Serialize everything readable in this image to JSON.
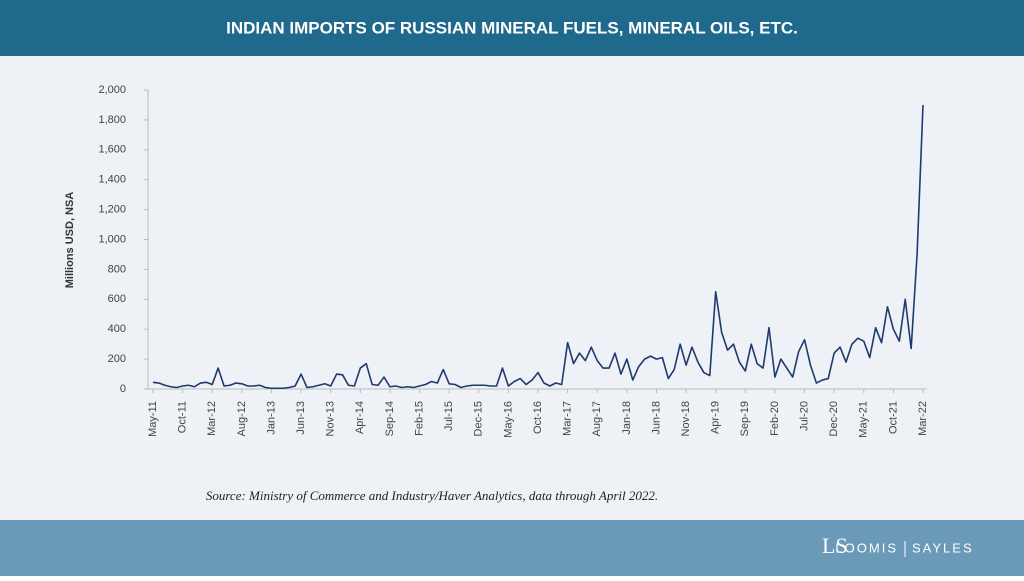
{
  "chart_data": {
    "type": "line",
    "title": "INDIAN IMPORTS OF RUSSIAN MINERAL FUELS, MINERAL OILS, ETC.",
    "y_label": "Millions USD, NSA",
    "source": "Source: Ministry of Commerce and Industry/Haver Analytics, data through April 2022.",
    "categories": [
      "May-11",
      null,
      null,
      null,
      null,
      "Oct-11",
      null,
      null,
      null,
      null,
      "Mar-12",
      null,
      null,
      null,
      null,
      "Aug-12",
      null,
      null,
      null,
      null,
      "Jan-13",
      null,
      null,
      null,
      null,
      "Jun-13",
      null,
      null,
      null,
      null,
      "Nov-13",
      null,
      null,
      null,
      null,
      "Apr-14",
      null,
      null,
      null,
      null,
      "Sep-14",
      null,
      null,
      null,
      null,
      "Feb-15",
      null,
      null,
      null,
      null,
      "Jul-15",
      null,
      null,
      null,
      null,
      "Dec-15",
      null,
      null,
      null,
      null,
      "May-16",
      null,
      null,
      null,
      null,
      "Oct-16",
      null,
      null,
      null,
      null,
      "Mar-17",
      null,
      null,
      null,
      null,
      "Aug-17",
      null,
      null,
      null,
      null,
      "Jan-18",
      null,
      null,
      null,
      null,
      "Jun-18",
      null,
      null,
      null,
      null,
      "Nov-18",
      null,
      null,
      null,
      null,
      "Apr-19",
      null,
      null,
      null,
      null,
      "Sep-19",
      null,
      null,
      null,
      null,
      "Feb-20",
      null,
      null,
      null,
      null,
      "Jul-20",
      null,
      null,
      null,
      null,
      "Dec-20",
      null,
      null,
      null,
      null,
      "May-21",
      null,
      null,
      null,
      null,
      "Oct-21",
      null,
      null,
      null,
      null,
      "Mar-22"
    ],
    "values": [
      45,
      40,
      25,
      15,
      10,
      20,
      25,
      15,
      40,
      45,
      30,
      140,
      20,
      25,
      40,
      35,
      20,
      20,
      25,
      10,
      5,
      5,
      5,
      10,
      20,
      100,
      10,
      15,
      25,
      35,
      20,
      100,
      95,
      25,
      20,
      140,
      170,
      30,
      25,
      80,
      15,
      20,
      10,
      15,
      10,
      20,
      30,
      50,
      40,
      130,
      35,
      30,
      10,
      20,
      25,
      25,
      25,
      20,
      20,
      140,
      20,
      50,
      70,
      30,
      60,
      110,
      40,
      20,
      40,
      30,
      310,
      170,
      240,
      190,
      280,
      190,
      140,
      140,
      240,
      100,
      200,
      60,
      150,
      200,
      220,
      200,
      210,
      70,
      130,
      300,
      160,
      280,
      180,
      110,
      90,
      650,
      380,
      260,
      300,
      180,
      120,
      300,
      170,
      140,
      410,
      80,
      200,
      140,
      80,
      250,
      330,
      160,
      40,
      60,
      70,
      240,
      280,
      180,
      300,
      340,
      320,
      210,
      410,
      310,
      550,
      400,
      320,
      600,
      270,
      900,
      1900
    ],
    "color": "#1f3a6e",
    "ylim": [
      0,
      2000
    ],
    "yticks": [
      0,
      200,
      400,
      600,
      800,
      {
        "value": 1000,
        "label": "1,000"
      },
      {
        "value": 1200,
        "label": "1,200"
      },
      {
        "value": 1400,
        "label": "1,400"
      },
      {
        "value": 1600,
        "label": "1,600"
      },
      {
        "value": 1800,
        "label": "1,800"
      },
      {
        "value": 2000,
        "label": "2,000"
      }
    ],
    "grid": false
  },
  "brand": [
    "LOOMIS",
    "SAYLES"
  ]
}
